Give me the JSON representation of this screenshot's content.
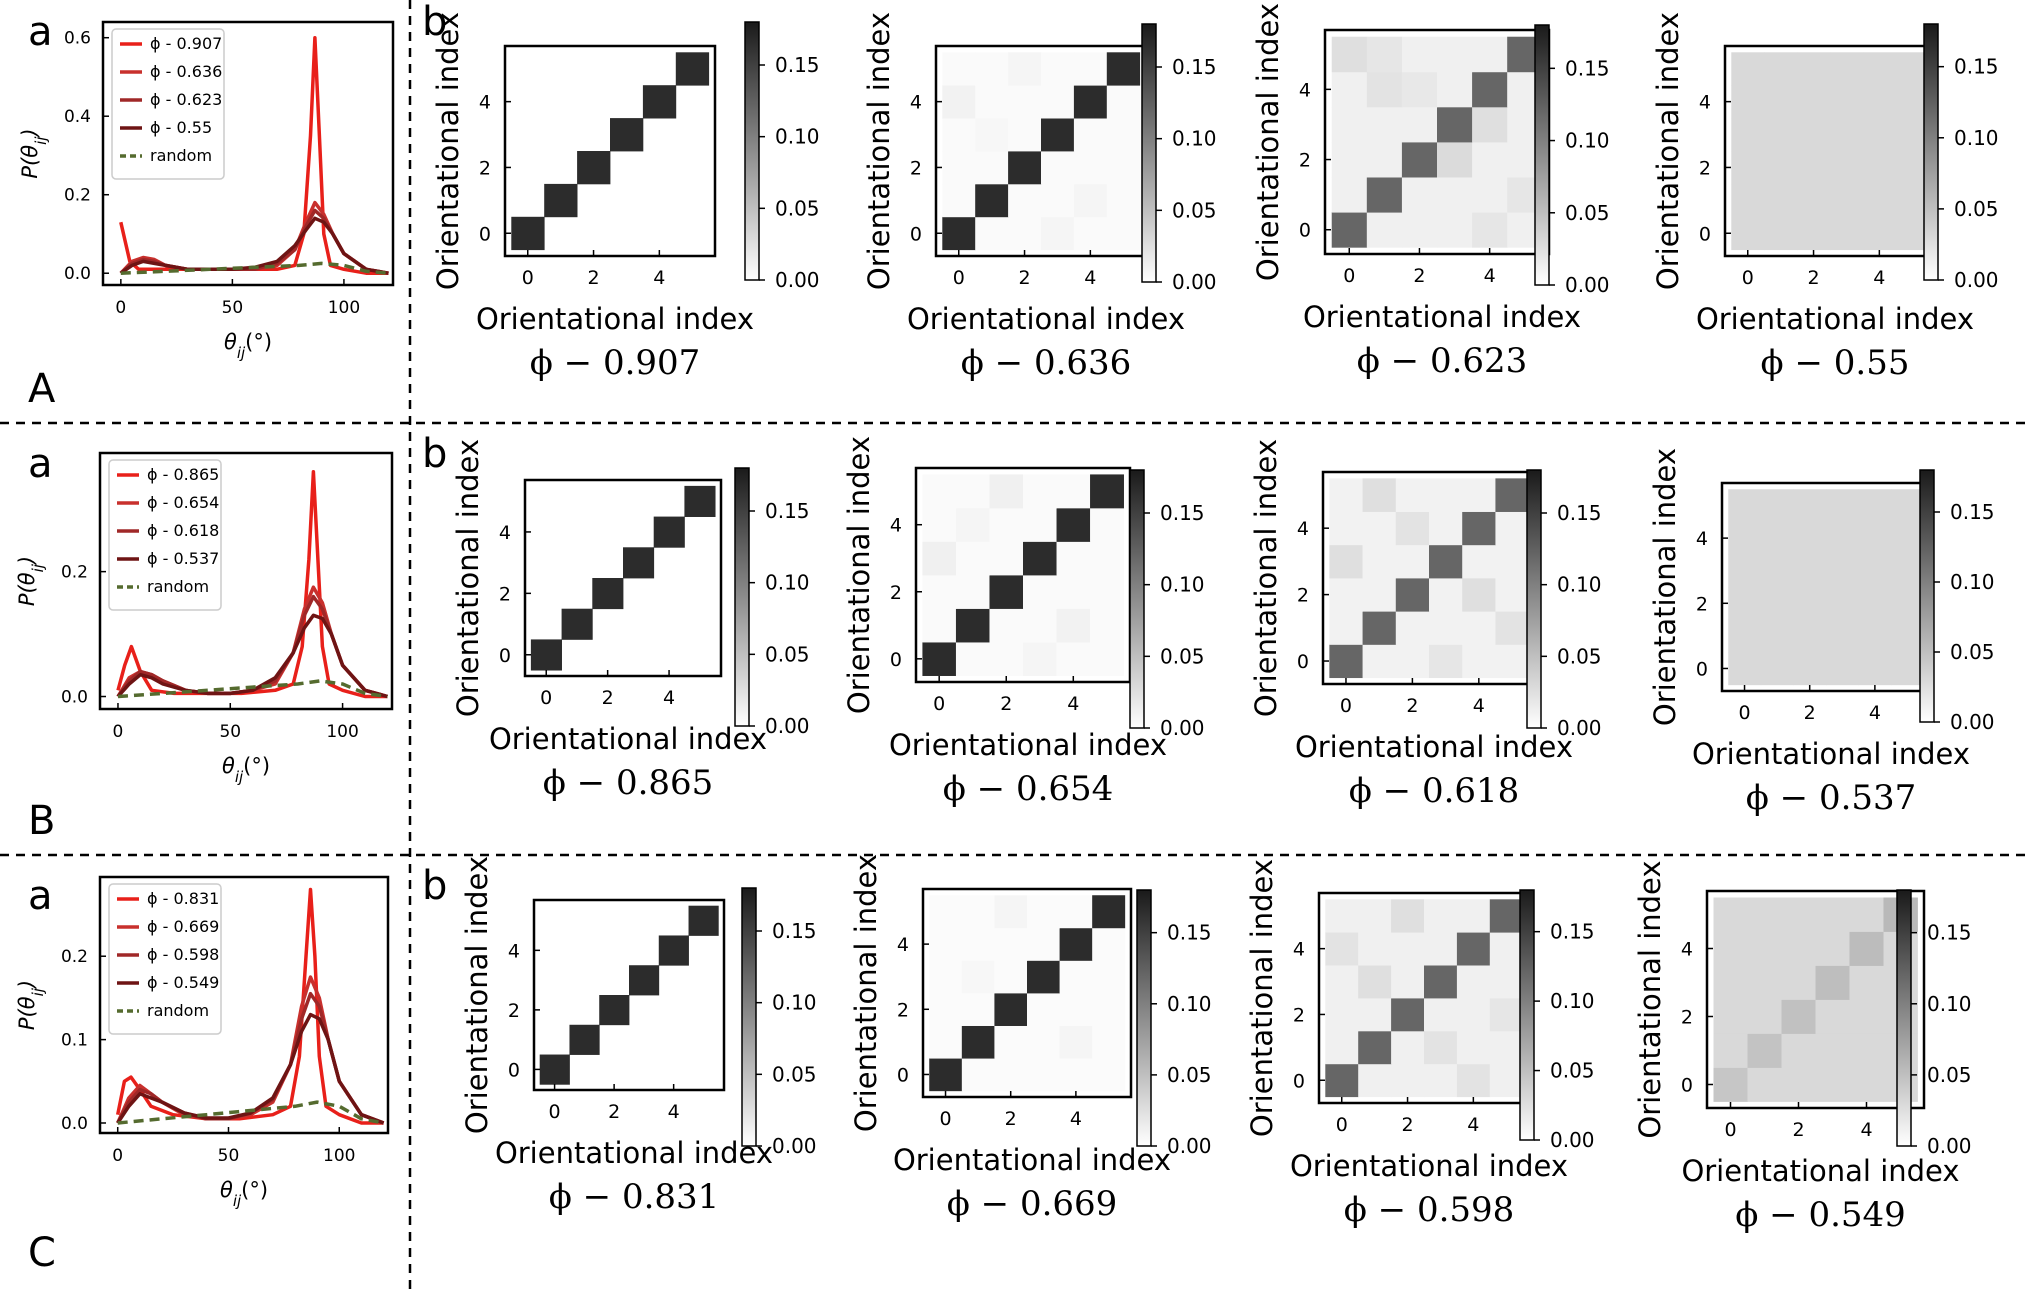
{
  "figure": {
    "row_labels": [
      "A",
      "B",
      "C"
    ],
    "panel_a_label": "a",
    "panel_b_label": "b",
    "y_label_main": "P(θ",
    "y_label_sub": "ij",
    "y_label_tail": ")",
    "x_label_main": "θ",
    "x_label_sub": "ij",
    "x_label_tail": "(°)",
    "heatmap_axis_label": "Orientational index",
    "legend_random": "random",
    "colors": {
      "series": [
        "#e8201a",
        "#c8302d",
        "#a02828",
        "#6e1414"
      ],
      "random": "#556b2f",
      "dark": "#1a1a1a",
      "uniform": "#d3d3d3"
    }
  },
  "chart_data": [
    {
      "type": "line",
      "row": "A",
      "xlabel": "θij(°)",
      "ylabel": "P(θij)",
      "xlim": [
        -8,
        122
      ],
      "ylim": [
        -0.03,
        0.64
      ],
      "xticks": [
        0,
        50,
        100
      ],
      "yticks": [
        0.0,
        0.2,
        0.4,
        0.6
      ],
      "ytick_labels": [
        "0.0",
        "0.2",
        "0.4",
        "0.6"
      ],
      "series": [
        {
          "name": "ϕ - 0.907",
          "x": [
            0,
            4,
            8,
            15,
            25,
            40,
            55,
            70,
            78,
            82,
            85,
            87,
            89,
            91,
            94,
            100,
            110,
            120
          ],
          "y": [
            0.13,
            0.03,
            0.01,
            0.01,
            0.01,
            0.01,
            0.01,
            0.01,
            0.02,
            0.1,
            0.35,
            0.6,
            0.35,
            0.1,
            0.02,
            0.01,
            0,
            0
          ]
        },
        {
          "name": "ϕ - 0.636",
          "x": [
            0,
            5,
            10,
            15,
            20,
            30,
            40,
            50,
            60,
            70,
            78,
            83,
            87,
            91,
            95,
            100,
            110,
            120
          ],
          "y": [
            0,
            0.03,
            0.04,
            0.035,
            0.02,
            0.01,
            0.01,
            0.01,
            0.01,
            0.02,
            0.06,
            0.13,
            0.18,
            0.15,
            0.1,
            0.05,
            0.01,
            0
          ]
        },
        {
          "name": "ϕ - 0.623",
          "x": [
            0,
            5,
            10,
            15,
            20,
            30,
            40,
            50,
            60,
            70,
            78,
            83,
            87,
            91,
            95,
            100,
            110,
            120
          ],
          "y": [
            0,
            0.025,
            0.035,
            0.03,
            0.02,
            0.01,
            0.01,
            0.01,
            0.01,
            0.025,
            0.06,
            0.12,
            0.16,
            0.14,
            0.1,
            0.05,
            0.01,
            0
          ]
        },
        {
          "name": "ϕ - 0.55",
          "x": [
            0,
            5,
            10,
            15,
            20,
            30,
            40,
            50,
            60,
            70,
            78,
            83,
            87,
            91,
            95,
            100,
            110,
            120
          ],
          "y": [
            0,
            0.02,
            0.03,
            0.025,
            0.02,
            0.01,
            0.01,
            0.01,
            0.015,
            0.03,
            0.07,
            0.11,
            0.14,
            0.13,
            0.1,
            0.05,
            0.01,
            0
          ]
        },
        {
          "name": "random",
          "x": [
            0,
            20,
            40,
            60,
            80,
            90,
            100,
            110,
            120
          ],
          "y": [
            0,
            0.005,
            0.01,
            0.015,
            0.02,
            0.025,
            0.02,
            0.005,
            0
          ],
          "style": "dashed"
        }
      ]
    },
    {
      "type": "line",
      "row": "B",
      "xlabel": "θij(°)",
      "ylabel": "P(θij)",
      "xlim": [
        -8,
        122
      ],
      "ylim": [
        -0.02,
        0.39
      ],
      "xticks": [
        0,
        50,
        100
      ],
      "yticks": [
        0.0,
        0.2
      ],
      "ytick_labels": [
        "0.0",
        "0.2"
      ],
      "series": [
        {
          "name": "ϕ - 0.865",
          "x": [
            0,
            3,
            6,
            10,
            15,
            25,
            40,
            55,
            70,
            78,
            82,
            85,
            87,
            89,
            91,
            94,
            100,
            110,
            120
          ],
          "y": [
            0.01,
            0.05,
            0.08,
            0.04,
            0.01,
            0.005,
            0.005,
            0.005,
            0.01,
            0.02,
            0.08,
            0.22,
            0.36,
            0.22,
            0.08,
            0.02,
            0.01,
            0,
            0
          ]
        },
        {
          "name": "ϕ - 0.654",
          "x": [
            0,
            5,
            10,
            15,
            20,
            30,
            40,
            50,
            60,
            70,
            78,
            83,
            87,
            91,
            95,
            100,
            110,
            120
          ],
          "y": [
            0,
            0.03,
            0.04,
            0.035,
            0.025,
            0.01,
            0.005,
            0.005,
            0.01,
            0.02,
            0.07,
            0.14,
            0.175,
            0.15,
            0.1,
            0.05,
            0.01,
            0
          ]
        },
        {
          "name": "ϕ - 0.618",
          "x": [
            0,
            5,
            10,
            15,
            20,
            30,
            40,
            50,
            60,
            70,
            78,
            83,
            87,
            91,
            95,
            100,
            110,
            120
          ],
          "y": [
            0,
            0.025,
            0.04,
            0.035,
            0.025,
            0.01,
            0.005,
            0.005,
            0.01,
            0.025,
            0.07,
            0.13,
            0.16,
            0.14,
            0.1,
            0.05,
            0.01,
            0
          ]
        },
        {
          "name": "ϕ - 0.537",
          "x": [
            0,
            5,
            10,
            15,
            20,
            30,
            40,
            50,
            60,
            70,
            78,
            83,
            87,
            91,
            95,
            100,
            110,
            120
          ],
          "y": [
            0,
            0.02,
            0.035,
            0.03,
            0.02,
            0.01,
            0.005,
            0.005,
            0.01,
            0.03,
            0.07,
            0.11,
            0.13,
            0.125,
            0.1,
            0.05,
            0.01,
            0
          ]
        },
        {
          "name": "random",
          "x": [
            0,
            20,
            40,
            60,
            80,
            90,
            100,
            110,
            120
          ],
          "y": [
            0,
            0.005,
            0.01,
            0.015,
            0.02,
            0.025,
            0.02,
            0.005,
            0
          ],
          "style": "dashed"
        }
      ]
    },
    {
      "type": "line",
      "row": "C",
      "xlabel": "θij(°)",
      "ylabel": "P(θij)",
      "xlim": [
        -8,
        122
      ],
      "ylim": [
        -0.012,
        0.295
      ],
      "xticks": [
        0,
        50,
        100
      ],
      "yticks": [
        0.0,
        0.1,
        0.2
      ],
      "ytick_labels": [
        "0.0",
        "0.1",
        "0.2"
      ],
      "series": [
        {
          "name": "ϕ - 0.831",
          "x": [
            0,
            3,
            6,
            10,
            15,
            25,
            40,
            55,
            70,
            78,
            82,
            85,
            87,
            89,
            91,
            94,
            100,
            110,
            120
          ],
          "y": [
            0.01,
            0.05,
            0.055,
            0.04,
            0.02,
            0.01,
            0.005,
            0.005,
            0.01,
            0.02,
            0.08,
            0.2,
            0.28,
            0.2,
            0.08,
            0.02,
            0.01,
            0,
            0
          ]
        },
        {
          "name": "ϕ - 0.669",
          "x": [
            0,
            5,
            10,
            15,
            20,
            30,
            40,
            50,
            60,
            70,
            78,
            83,
            87,
            91,
            95,
            100,
            110,
            120
          ],
          "y": [
            0,
            0.03,
            0.045,
            0.035,
            0.025,
            0.01,
            0.005,
            0.005,
            0.01,
            0.025,
            0.07,
            0.14,
            0.175,
            0.15,
            0.1,
            0.05,
            0.01,
            0
          ]
        },
        {
          "name": "ϕ - 0.598",
          "x": [
            0,
            5,
            10,
            15,
            20,
            30,
            40,
            50,
            60,
            70,
            78,
            83,
            87,
            91,
            95,
            100,
            110,
            120
          ],
          "y": [
            0,
            0.025,
            0.04,
            0.035,
            0.025,
            0.012,
            0.005,
            0.005,
            0.012,
            0.028,
            0.07,
            0.125,
            0.155,
            0.14,
            0.1,
            0.05,
            0.01,
            0
          ]
        },
        {
          "name": "ϕ - 0.549",
          "x": [
            0,
            5,
            10,
            15,
            20,
            30,
            40,
            50,
            60,
            70,
            78,
            83,
            87,
            91,
            95,
            100,
            110,
            120
          ],
          "y": [
            0,
            0.02,
            0.035,
            0.03,
            0.025,
            0.012,
            0.006,
            0.006,
            0.012,
            0.03,
            0.07,
            0.11,
            0.13,
            0.125,
            0.1,
            0.05,
            0.01,
            0
          ]
        },
        {
          "name": "random",
          "x": [
            0,
            20,
            40,
            60,
            80,
            90,
            100,
            110,
            120
          ],
          "y": [
            0,
            0.005,
            0.01,
            0.015,
            0.02,
            0.025,
            0.02,
            0.005,
            0
          ],
          "style": "dashed"
        }
      ]
    },
    {
      "type": "heatmap",
      "group": "heatmaps",
      "colorbar": {
        "min": 0,
        "max": 0.18,
        "ticks": [
          0,
          0.05,
          0.1,
          0.15
        ],
        "tick_labels": [
          "0.00",
          "0.05",
          "0.10",
          "0.15"
        ]
      },
      "axis_ticks": [
        0,
        2,
        4
      ],
      "xlabel": "Orientational index",
      "ylabel": "Orientational index",
      "size": 6,
      "panels": [
        {
          "row": "A",
          "caption": "ϕ − 0.907",
          "diag": 0.166,
          "off": 0.0,
          "extra": []
        },
        {
          "row": "A",
          "caption": "ϕ − 0.636",
          "diag": 0.166,
          "off": 0.004,
          "extra": [
            [
              0,
              4,
              0.01
            ],
            [
              3,
              0,
              0.008
            ],
            [
              2,
              5,
              0.008
            ],
            [
              4,
              1,
              0.008
            ],
            [
              1,
              3,
              0.006
            ]
          ]
        },
        {
          "row": "A",
          "caption": "ϕ − 0.623",
          "diag": 0.12,
          "off": 0.012,
          "extra": [
            [
              0,
              5,
              0.025
            ],
            [
              1,
              4,
              0.022
            ],
            [
              3,
              2,
              0.028
            ],
            [
              5,
              1,
              0.02
            ],
            [
              2,
              4,
              0.018
            ],
            [
              4,
              3,
              0.025
            ],
            [
              4,
              0,
              0.02
            ],
            [
              1,
              5,
              0.02
            ]
          ]
        },
        {
          "row": "A",
          "caption": "ϕ − 0.55",
          "diag": 0.03,
          "off": 0.03,
          "extra": []
        },
        {
          "row": "B",
          "caption": "ϕ − 0.865",
          "diag": 0.166,
          "off": 0.0,
          "extra": []
        },
        {
          "row": "B",
          "caption": "ϕ − 0.654",
          "diag": 0.166,
          "off": 0.004,
          "extra": [
            [
              2,
              5,
              0.012
            ],
            [
              0,
              3,
              0.012
            ],
            [
              4,
              1,
              0.01
            ],
            [
              3,
              0,
              0.008
            ],
            [
              1,
              4,
              0.008
            ]
          ]
        },
        {
          "row": "B",
          "caption": "ϕ − 0.618",
          "diag": 0.12,
          "off": 0.01,
          "extra": [
            [
              1,
              5,
              0.025
            ],
            [
              0,
              3,
              0.025
            ],
            [
              4,
              2,
              0.025
            ],
            [
              2,
              4,
              0.022
            ],
            [
              5,
              1,
              0.022
            ],
            [
              3,
              0,
              0.02
            ]
          ]
        },
        {
          "row": "B",
          "caption": "ϕ − 0.537",
          "diag": 0.03,
          "off": 0.03,
          "extra": []
        },
        {
          "row": "C",
          "caption": "ϕ − 0.831",
          "diag": 0.166,
          "off": 0.0,
          "extra": []
        },
        {
          "row": "C",
          "caption": "ϕ − 0.669",
          "diag": 0.166,
          "off": 0.003,
          "extra": [
            [
              2,
              5,
              0.008
            ],
            [
              4,
              1,
              0.008
            ],
            [
              1,
              3,
              0.006
            ]
          ]
        },
        {
          "row": "C",
          "caption": "ϕ − 0.598",
          "diag": 0.12,
          "off": 0.012,
          "extra": [
            [
              2,
              5,
              0.025
            ],
            [
              0,
              4,
              0.022
            ],
            [
              1,
              3,
              0.025
            ],
            [
              3,
              1,
              0.022
            ],
            [
              4,
              0,
              0.022
            ],
            [
              5,
              2,
              0.02
            ]
          ]
        },
        {
          "row": "C",
          "caption": "ϕ − 0.549",
          "diag": 0.045,
          "off": 0.03,
          "extra": []
        }
      ]
    }
  ]
}
